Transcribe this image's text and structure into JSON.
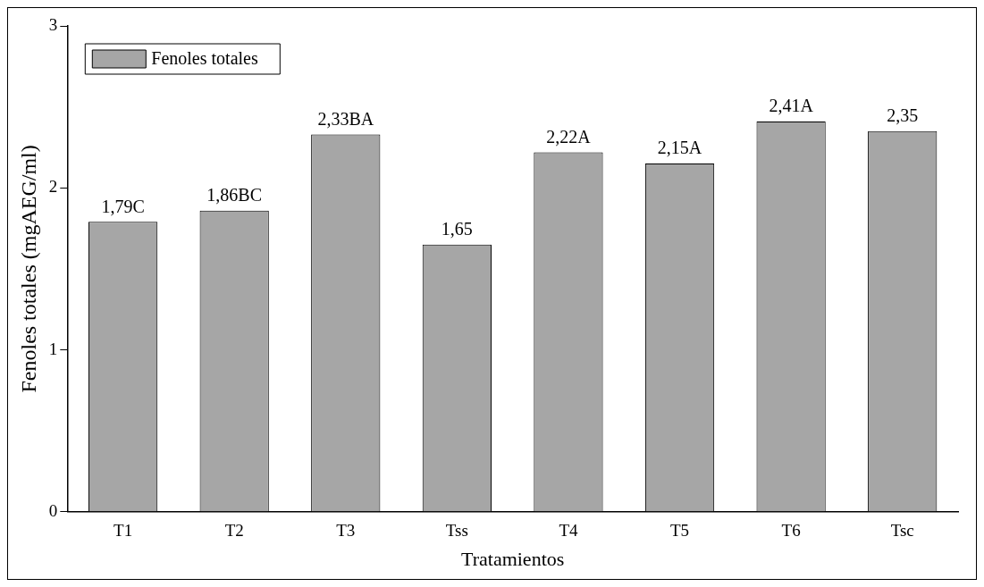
{
  "chart_data": {
    "type": "bar",
    "xlabel": "Tratamientos",
    "ylabel": "Fenoles totales (mgAEG/ml)",
    "categories": [
      "T1",
      "T2",
      "T3",
      "Tss",
      "T4",
      "T5",
      "T6",
      "Tsc"
    ],
    "series": [
      {
        "name": "Fenoles totales",
        "color": "#a6a6a6",
        "values": [
          1.79,
          1.86,
          2.33,
          1.65,
          2.22,
          2.15,
          2.41,
          2.35
        ],
        "value_labels": [
          "1,79C",
          "1,86BC",
          "2,33BA",
          "1,65",
          "2,22A",
          "2,15A",
          "2,41A",
          "2,35"
        ]
      }
    ],
    "ylim": [
      0,
      3
    ],
    "yticks": [
      0,
      1,
      2,
      3
    ],
    "grid": false,
    "legend": "top left"
  }
}
